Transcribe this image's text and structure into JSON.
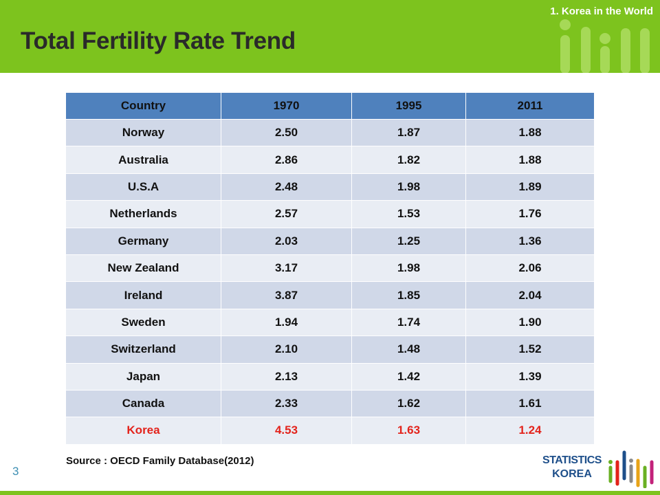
{
  "header": {
    "section_label": "1.   Korea in the World",
    "title": "Total Fertility Rate Trend"
  },
  "table": {
    "columns": [
      "Country",
      "1970",
      "1995",
      "2011"
    ],
    "rows": [
      [
        "Norway",
        "2.50",
        "1.87",
        "1.88"
      ],
      [
        "Australia",
        "2.86",
        "1.82",
        "1.88"
      ],
      [
        "U.S.A",
        "2.48",
        "1.98",
        "1.89"
      ],
      [
        "Netherlands",
        "2.57",
        "1.53",
        "1.76"
      ],
      [
        "Germany",
        "2.03",
        "1.25",
        "1.36"
      ],
      [
        "New Zealand",
        "3.17",
        "1.98",
        "2.06"
      ],
      [
        "Ireland",
        "3.87",
        "1.85",
        "2.04"
      ],
      [
        "Sweden",
        "1.94",
        "1.74",
        "1.90"
      ],
      [
        "Switzerland",
        "2.10",
        "1.48",
        "1.52"
      ],
      [
        "Japan",
        "2.13",
        "1.42",
        "1.39"
      ],
      [
        "Canada",
        "2.33",
        "1.62",
        "1.61"
      ],
      [
        "Korea",
        "4.53",
        "1.63",
        "1.24"
      ]
    ],
    "highlight_row": "Korea"
  },
  "footer": {
    "source": "Source : OECD Family Database(2012)",
    "page_number": "3",
    "logo_line1": "STATISTICS",
    "logo_line2": "KOREA"
  },
  "colors": {
    "header_green": "#7dc31e",
    "table_header_blue": "#4f81bd",
    "row_odd": "#d0d8e8",
    "row_even": "#e9edf4",
    "highlight_red": "#e3231b",
    "logo_blue": "#1e4f8a"
  }
}
